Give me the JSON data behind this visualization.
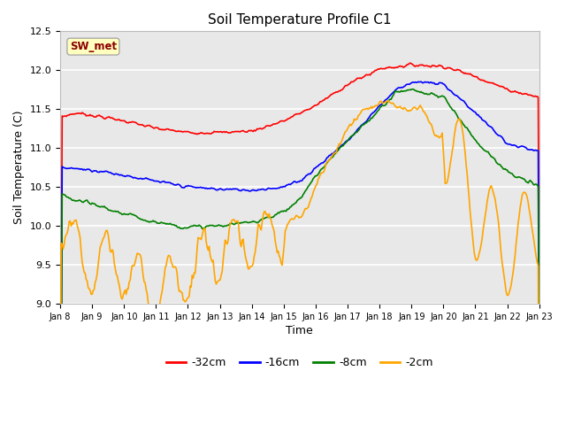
{
  "title": "Soil Temperature Profile C1",
  "xlabel": "Time",
  "ylabel": "Soil Temperature (C)",
  "ylim": [
    9.0,
    12.5
  ],
  "annotation": "SW_met",
  "annotation_color": "#8B0000",
  "annotation_bg": "#FFFFC0",
  "bg_color": "#E8E8E8",
  "grid_color": "#FFFFFF",
  "legend_labels": [
    "-32cm",
    "-16cm",
    "-8cm",
    "-2cm"
  ],
  "legend_colors": [
    "red",
    "blue",
    "green",
    "orange"
  ],
  "line_colors": {
    "d32": "red",
    "d16": "blue",
    "d8": "green",
    "d2": "orange"
  },
  "x_tick_labels": [
    "Jan 8",
    "Jan 9",
    "Jan 10",
    "Jan 11",
    "Jan 12",
    "Jan 13",
    "Jan 14",
    "Jan 15",
    "Jan 16",
    "Jan 17",
    "Jan 18",
    "Jan 19",
    "Jan 20",
    "Jan 21",
    "Jan 22",
    "Jan 23"
  ],
  "yticks": [
    9.0,
    9.5,
    10.0,
    10.5,
    11.0,
    11.5,
    12.0,
    12.5
  ],
  "n_points": 480
}
